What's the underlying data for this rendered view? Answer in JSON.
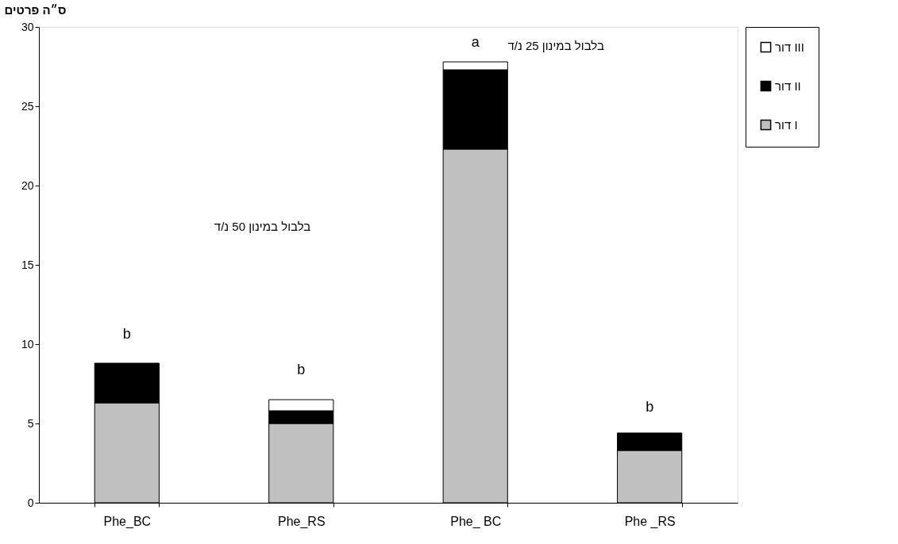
{
  "chart_data": {
    "type": "bar",
    "stacked": true,
    "ylabel": "ס״ה פרטים",
    "categories": [
      "Phe_BC",
      "Phe_RS",
      "Phe_ BC",
      "Phe _RS"
    ],
    "series": [
      {
        "name": "דור I",
        "color": "#c0c0c0",
        "values": [
          6.3,
          5.0,
          22.3,
          3.3
        ]
      },
      {
        "name": "דור II",
        "color": "#000000",
        "values": [
          2.5,
          0.8,
          5.0,
          1.1
        ]
      },
      {
        "name": "דור III",
        "color": "#ffffff",
        "values": [
          null,
          0.7,
          0.5,
          null
        ]
      }
    ],
    "ylim": [
      0,
      30
    ],
    "yticks": [
      0,
      5,
      10,
      15,
      20,
      25,
      30
    ],
    "grid": false,
    "legend": "right",
    "annotations": [
      "b",
      "b",
      "a",
      "b",
      "בלבול במינון 50 נ/ד",
      "בלבול במינון 25 נ/ד"
    ]
  }
}
